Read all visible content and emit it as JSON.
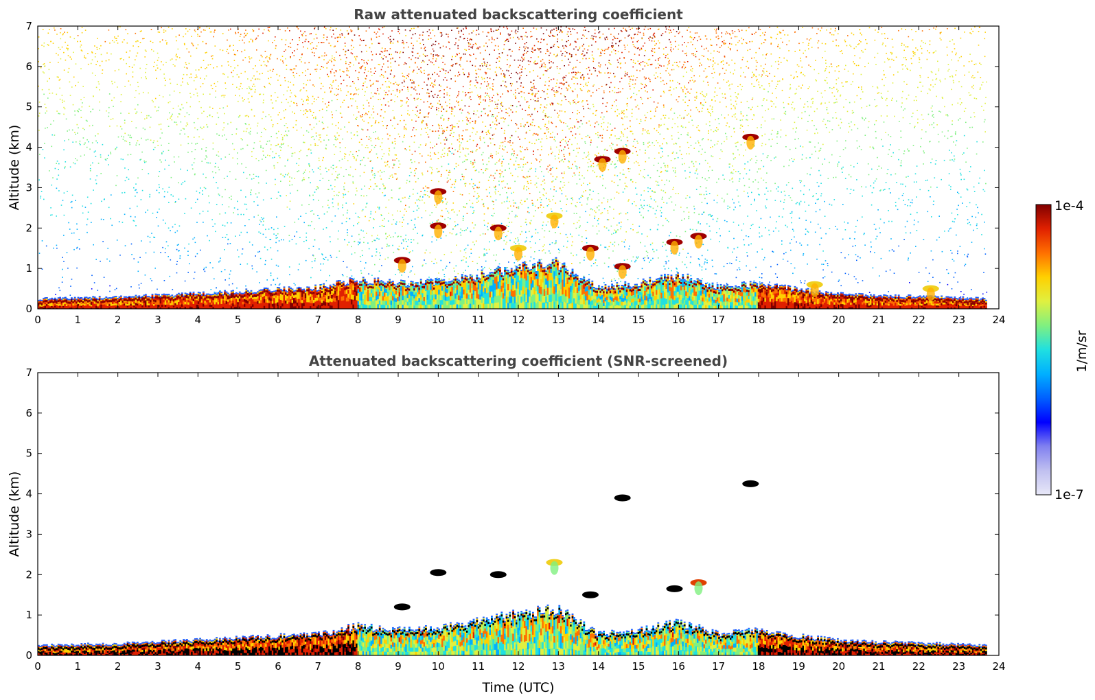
{
  "chart_data": [
    {
      "type": "heatmap",
      "title": "Raw attenuated backscattering coefficient",
      "xlabel": "",
      "ylabel": "Altitude (km)",
      "xlim": [
        0,
        24
      ],
      "ylim": [
        0,
        7
      ],
      "x_ticks": [
        "0",
        "1",
        "2",
        "3",
        "4",
        "5",
        "6",
        "7",
        "8",
        "9",
        "10",
        "11",
        "12",
        "13",
        "14",
        "15",
        "16",
        "17",
        "18",
        "19",
        "20",
        "21",
        "22",
        "23",
        "24"
      ],
      "y_ticks": [
        "0",
        "1",
        "2",
        "3",
        "4",
        "5",
        "6",
        "7"
      ],
      "data_end_hour": 23.7,
      "boundary_layer_top_km": [
        [
          0,
          0.22
        ],
        [
          2,
          0.26
        ],
        [
          4,
          0.35
        ],
        [
          5,
          0.4
        ],
        [
          7,
          0.5
        ],
        [
          8,
          0.7
        ],
        [
          9,
          0.6
        ],
        [
          10,
          0.65
        ],
        [
          11,
          0.8
        ],
        [
          12,
          1.0
        ],
        [
          13,
          1.1
        ],
        [
          14,
          0.5
        ],
        [
          15,
          0.6
        ],
        [
          16,
          0.8
        ],
        [
          17,
          0.5
        ],
        [
          18,
          0.6
        ],
        [
          19,
          0.45
        ],
        [
          20,
          0.35
        ],
        [
          21,
          0.3
        ],
        [
          22,
          0.28
        ],
        [
          23.7,
          0.22
        ]
      ],
      "cloud_features": [
        {
          "hour": 17.8,
          "alt_km": 4.25,
          "level": "high"
        },
        {
          "hour": 16.5,
          "alt_km": 1.8,
          "level": "high"
        },
        {
          "hour": 15.9,
          "alt_km": 1.65,
          "level": "high"
        },
        {
          "hour": 14.6,
          "alt_km": 3.9,
          "level": "high"
        },
        {
          "hour": 14.1,
          "alt_km": 3.7,
          "level": "high"
        },
        {
          "hour": 13.8,
          "alt_km": 1.5,
          "level": "high"
        },
        {
          "hour": 11.5,
          "alt_km": 2.0,
          "level": "high"
        },
        {
          "hour": 10.0,
          "alt_km": 2.05,
          "level": "high"
        },
        {
          "hour": 10.0,
          "alt_km": 2.9,
          "level": "high"
        },
        {
          "hour": 9.1,
          "alt_km": 1.2,
          "level": "high"
        },
        {
          "hour": 12.0,
          "alt_km": 1.5,
          "level": "medium"
        },
        {
          "hour": 12.9,
          "alt_km": 2.3,
          "level": "medium"
        },
        {
          "hour": 14.6,
          "alt_km": 1.05,
          "level": "high"
        },
        {
          "hour": 19.4,
          "alt_km": 0.6,
          "level": "medium"
        },
        {
          "hour": 22.3,
          "alt_km": 0.5,
          "level": "medium"
        }
      ]
    },
    {
      "type": "heatmap",
      "title": "Attenuated backscattering coefficient (SNR-screened)",
      "xlabel": "Time (UTC)",
      "ylabel": "Altitude (km)",
      "xlim": [
        0,
        24
      ],
      "ylim": [
        0,
        7
      ],
      "x_ticks": [
        "0",
        "1",
        "2",
        "3",
        "4",
        "5",
        "6",
        "7",
        "8",
        "9",
        "10",
        "11",
        "12",
        "13",
        "14",
        "15",
        "16",
        "17",
        "18",
        "19",
        "20",
        "21",
        "22",
        "23",
        "24"
      ],
      "y_ticks": [
        "0",
        "1",
        "2",
        "3",
        "4",
        "5",
        "6",
        "7"
      ],
      "data_end_hour": 23.7,
      "cloud_features": [
        {
          "hour": 17.8,
          "alt_km": 4.25,
          "level": "saturated"
        },
        {
          "hour": 16.5,
          "alt_km": 1.8,
          "level": "high"
        },
        {
          "hour": 15.9,
          "alt_km": 1.65,
          "level": "saturated"
        },
        {
          "hour": 14.6,
          "alt_km": 3.9,
          "level": "saturated"
        },
        {
          "hour": 13.8,
          "alt_km": 1.5,
          "level": "saturated"
        },
        {
          "hour": 11.5,
          "alt_km": 2.0,
          "level": "saturated"
        },
        {
          "hour": 10.0,
          "alt_km": 2.05,
          "level": "saturated"
        },
        {
          "hour": 9.1,
          "alt_km": 1.2,
          "level": "saturated"
        },
        {
          "hour": 12.9,
          "alt_km": 2.3,
          "level": "medium"
        }
      ]
    }
  ],
  "colorbar": {
    "label": "1/m/sr",
    "max_label": "1e-4",
    "min_label": "1e-7",
    "colors": [
      "#e8e8f8",
      "#c0c0f0",
      "#8080f0",
      "#0000ff",
      "#0060ff",
      "#00b0ff",
      "#20e0e0",
      "#80f080",
      "#e0f040",
      "#ffd000",
      "#ff7000",
      "#e02000",
      "#800000"
    ]
  }
}
